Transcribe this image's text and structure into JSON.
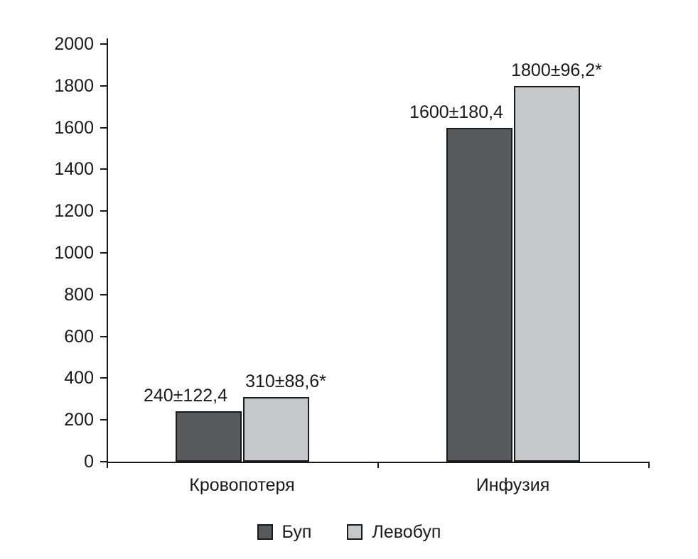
{
  "chart_data": {
    "type": "bar",
    "categories": [
      "Кровопотеря",
      "Инфузия"
    ],
    "series": [
      {
        "name": "Буп",
        "color": "#58595b",
        "values": [
          240,
          1600
        ],
        "value_labels": [
          "240±122,4",
          "1600±180,4"
        ]
      },
      {
        "name": "Левобуп",
        "color": "#c7c8ca",
        "values": [
          310,
          1800
        ],
        "value_labels": [
          "310±88,6*",
          "1800±96,2*"
        ]
      }
    ],
    "title": "",
    "xlabel": "",
    "ylabel": "",
    "ylim": [
      0,
      2000
    ],
    "ytick_step": 200,
    "ytick_labels": [
      "0",
      "200",
      "400",
      "600",
      "800",
      "1000",
      "1200",
      "1400",
      "1600",
      "1800",
      "2000"
    ],
    "grid": false,
    "legend_position": "bottom",
    "axis_color": "#1a1a1a",
    "background_color": "#ffffff"
  }
}
